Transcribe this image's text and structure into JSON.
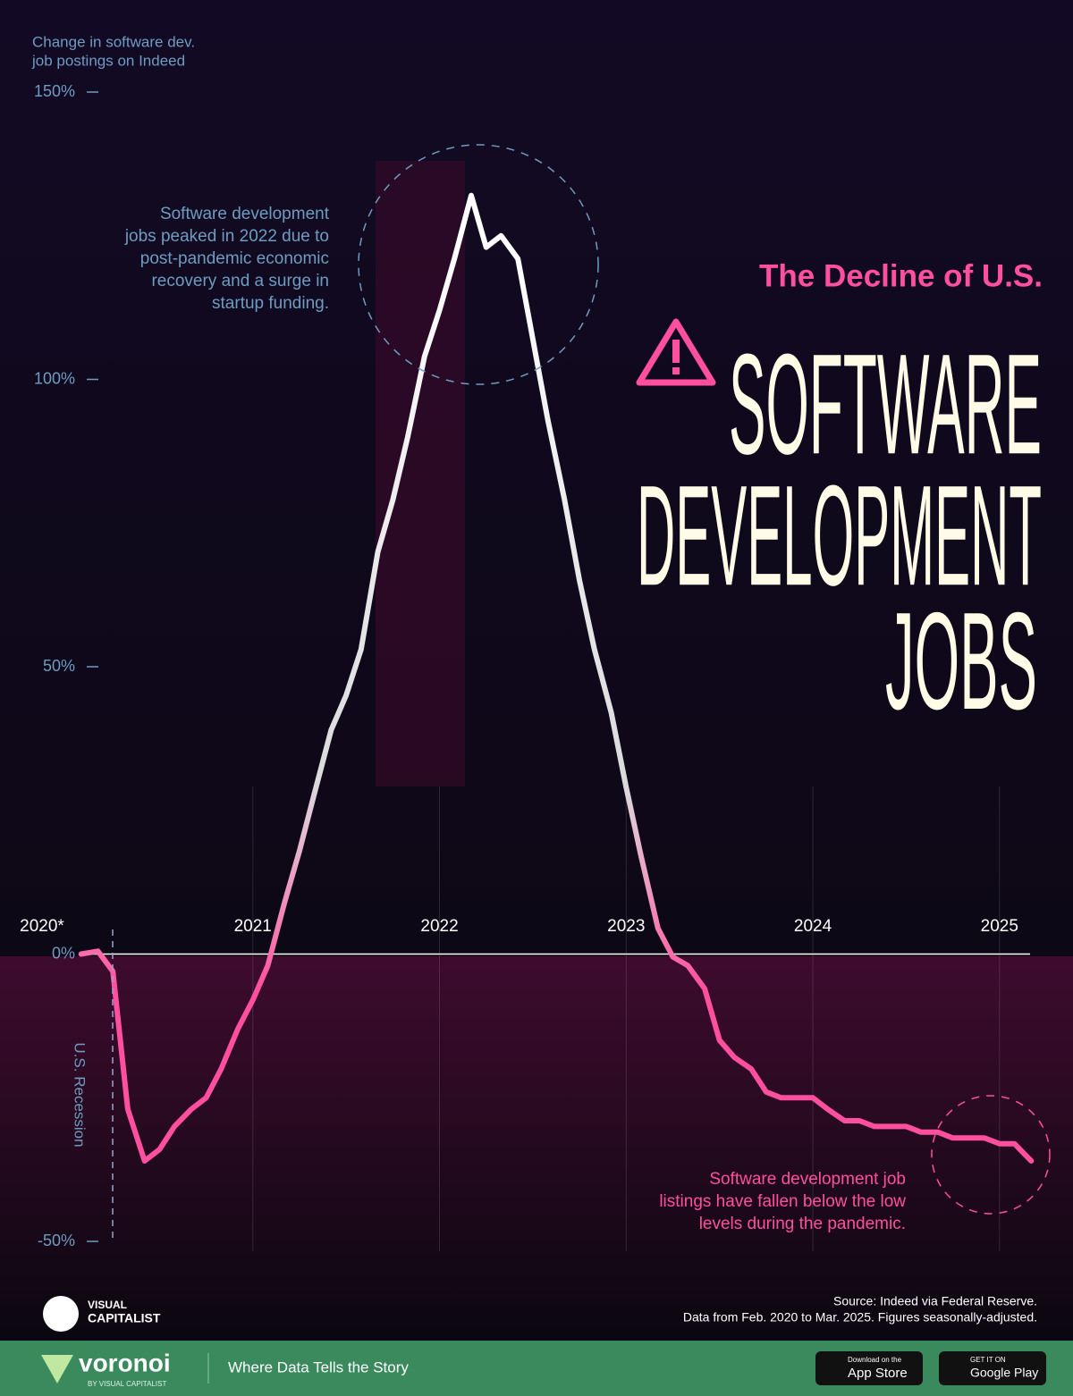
{
  "chart_data": {
    "type": "line",
    "y_label": [
      "Change in software dev.",
      "job postings on Indeed"
    ],
    "subtitle": "The Decline of U.S.",
    "title": [
      "SOFTWARE",
      "DEVELOPMENT",
      "JOBS"
    ],
    "annotations": [
      {
        "lines": [
          "Software development",
          "jobs peaked in 2022 due to",
          "post-pandemic economic",
          "recovery and a surge in",
          "startup funding."
        ]
      },
      {
        "lines": [
          "Software development job",
          "listings have fallen below the low",
          "levels during the pandemic."
        ]
      }
    ],
    "recession_label": "U.S. Recession",
    "source": [
      "Source: Indeed via Federal Reserve.",
      "Data from Feb. 2020 to Mar. 2025. Figures seasonally-adjusted."
    ],
    "x": [
      2020.08,
      2020.17,
      2020.25,
      2020.33,
      2020.42,
      2020.5,
      2020.58,
      2020.67,
      2020.75,
      2020.83,
      2020.92,
      2021,
      2021.08,
      2021.17,
      2021.25,
      2021.33,
      2021.42,
      2021.5,
      2021.58,
      2021.67,
      2021.75,
      2021.83,
      2021.92,
      2022,
      2022.08,
      2022.17,
      2022.25,
      2022.33,
      2022.42,
      2022.5,
      2022.58,
      2022.67,
      2022.75,
      2022.83,
      2022.92,
      2023,
      2023.08,
      2023.17,
      2023.25,
      2023.33,
      2023.42,
      2023.5,
      2023.58,
      2023.67,
      2023.75,
      2023.83,
      2023.92,
      2024,
      2024.08,
      2024.17,
      2024.25,
      2024.33,
      2024.42,
      2024.5,
      2024.58,
      2024.67,
      2024.75,
      2024.83,
      2024.92,
      2025,
      2025.08,
      2025.17
    ],
    "values": [
      0,
      0.5,
      -3,
      -27,
      -36,
      -34,
      -30,
      -27,
      -25,
      -20,
      -13,
      -8,
      -2,
      9,
      18,
      28,
      39,
      45,
      53,
      70,
      79,
      90,
      104,
      112,
      121,
      132,
      123,
      125,
      121,
      107,
      93,
      79,
      65,
      53,
      42,
      29,
      17,
      4.5,
      -0.5,
      -2,
      -6,
      -15,
      -18,
      -20,
      -24,
      -25,
      -25,
      -25,
      -27,
      -29,
      -29,
      -30,
      -30,
      -30,
      -31,
      -31,
      -32,
      -32,
      -32,
      -33,
      -33,
      -36
    ],
    "color": "#ff4f9e",
    "peak_color": "#ffffff",
    "xlim": [
      2020,
      2025.25
    ],
    "xticks": [
      {
        "value": 2020,
        "label": "2020*"
      },
      2021,
      2022,
      2023,
      2024,
      2025
    ],
    "ylim": [
      -50,
      150
    ],
    "yticks": [
      {
        "value": 150,
        "label": "150%"
      },
      {
        "value": 100,
        "label": "100%"
      },
      {
        "value": 50,
        "label": "50%"
      },
      {
        "value": 0,
        "label": "0%"
      },
      {
        "value": -50,
        "label": "-50%"
      }
    ],
    "grid": true
  },
  "branding": {
    "logo": [
      "VISUAL",
      "CAPITALIST"
    ],
    "footer_brand": "voronoi",
    "footer_by": "BY VISUAL CAPITALIST",
    "tagline": "Where Data Tells the Story",
    "app_store": [
      "Download on the",
      "App Store"
    ],
    "google_play": [
      "GET IT ON",
      "Google Play"
    ]
  }
}
